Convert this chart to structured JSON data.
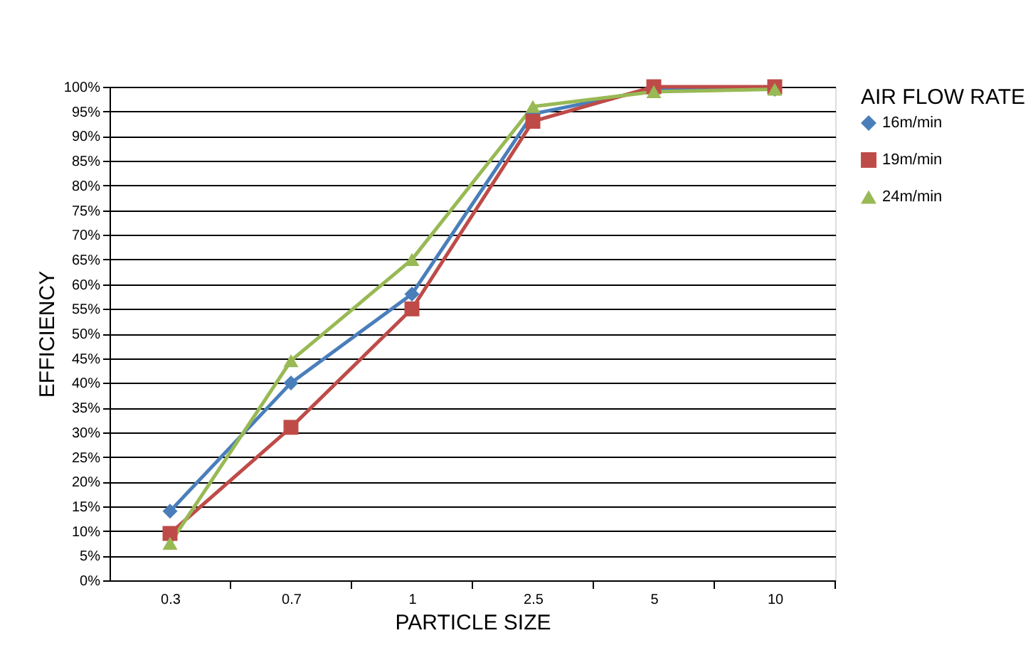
{
  "chart_data": {
    "type": "line",
    "xlabel": "PARTICLE SIZE",
    "ylabel": "EFFICIENCY",
    "legend_title": "AIR FLOW RATE",
    "legend": "right",
    "grid": "y",
    "categories": [
      "0.3",
      "0.7",
      "1",
      "2.5",
      "5",
      "10"
    ],
    "ylim": [
      0,
      100
    ],
    "yticks": [
      {
        "value": 0,
        "label": "0%"
      },
      {
        "value": 5,
        "label": "5%"
      },
      {
        "value": 10,
        "label": "10%"
      },
      {
        "value": 15,
        "label": "15%"
      },
      {
        "value": 20,
        "label": "20%"
      },
      {
        "value": 25,
        "label": "25%"
      },
      {
        "value": 30,
        "label": "30%"
      },
      {
        "value": 35,
        "label": "35%"
      },
      {
        "value": 40,
        "label": "40%"
      },
      {
        "value": 45,
        "label": "45%"
      },
      {
        "value": 50,
        "label": "50%"
      },
      {
        "value": 55,
        "label": "55%"
      },
      {
        "value": 60,
        "label": "60%"
      },
      {
        "value": 65,
        "label": "65%"
      },
      {
        "value": 70,
        "label": "70%"
      },
      {
        "value": 75,
        "label": "75%"
      },
      {
        "value": 80,
        "label": "80%"
      },
      {
        "value": 85,
        "label": "85%"
      },
      {
        "value": 90,
        "label": "90%"
      },
      {
        "value": 95,
        "label": "95%"
      },
      {
        "value": 100,
        "label": "100%"
      }
    ],
    "series": [
      {
        "name": "16m/min",
        "color": "#4a7ebb",
        "marker": "diamond",
        "values": [
          14,
          40,
          58,
          94.5,
          99.5,
          99.5
        ]
      },
      {
        "name": "19m/min",
        "color": "#be4b48",
        "marker": "square",
        "values": [
          9.5,
          31,
          55,
          93,
          100,
          100
        ]
      },
      {
        "name": "24m/min",
        "color": "#98b954",
        "marker": "triangle",
        "values": [
          7.5,
          44.5,
          65,
          96,
          99,
          99.5
        ]
      }
    ]
  }
}
